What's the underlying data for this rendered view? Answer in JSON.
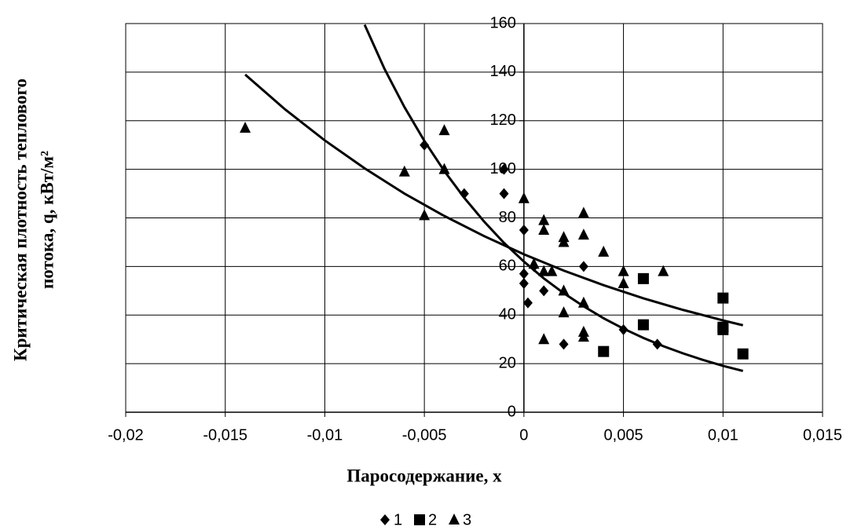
{
  "chart_data": {
    "type": "scatter",
    "xlabel": "Паросодержание, x",
    "ylabel": [
      "Критическая плотность теплового",
      "потока, q, кВт/м²"
    ],
    "xlim": [
      -0.02,
      0.015
    ],
    "ylim": [
      0,
      160
    ],
    "xticks": [
      {
        "value": -0.02,
        "label": "-0,02"
      },
      {
        "value": -0.015,
        "label": "-0,015"
      },
      {
        "value": -0.01,
        "label": "-0,01"
      },
      {
        "value": -0.005,
        "label": "-0,005"
      },
      0,
      {
        "value": 0.005,
        "label": "0,005"
      },
      {
        "value": 0.01,
        "label": "0,01"
      },
      {
        "value": 0.015,
        "label": "0,015"
      }
    ],
    "yticks": [
      0,
      20,
      40,
      60,
      80,
      100,
      120,
      140,
      160
    ],
    "grid": true,
    "legend": "bottom",
    "series": [
      {
        "name": "1",
        "color": "#000000",
        "marker": "diamond",
        "x": [
          -0.005,
          -0.001,
          -0.001,
          -0.003,
          0,
          0,
          0,
          0.0002,
          0.001,
          0.002,
          0.003,
          0.005,
          0.0067,
          0.0005
        ],
        "values": [
          110,
          100,
          90,
          90,
          75,
          57,
          53,
          45,
          50,
          28,
          60,
          34,
          28,
          60
        ]
      },
      {
        "name": "2",
        "color": "#000000",
        "marker": "square",
        "x": [
          0.004,
          0.006,
          0.006,
          0.01,
          0.01,
          0.01,
          0.011
        ],
        "values": [
          25,
          55,
          36,
          47,
          35,
          34,
          24
        ]
      },
      {
        "name": "3",
        "color": "#000000",
        "marker": "triangle",
        "x": [
          -0.014,
          -0.006,
          -0.005,
          -0.004,
          -0.004,
          0,
          0.0005,
          0.001,
          0.001,
          0.001,
          0.0014,
          0.001,
          0.002,
          0.002,
          0.002,
          0.002,
          0.003,
          0.003,
          0.003,
          0.003,
          0.003,
          0.004,
          0.005,
          0.005,
          0.007
        ],
        "values": [
          117,
          99,
          81,
          116,
          100,
          88,
          61,
          79,
          75,
          58,
          58,
          30,
          72,
          70,
          50,
          41,
          82,
          73,
          45,
          33,
          31,
          66,
          58,
          53,
          58
        ]
      }
    ],
    "trendlines": [
      {
        "color": "#000000",
        "x": [
          -0.008,
          -0.007,
          -0.006,
          -0.005,
          -0.004,
          -0.003,
          -0.002,
          -0.001,
          0,
          0.001,
          0.002,
          0.003,
          0.004,
          0.005,
          0.006,
          0.007,
          0.008,
          0.009,
          0.01,
          0.011
        ],
        "values": [
          159.5,
          141.3,
          125.6,
          111.7,
          99.3,
          88.3,
          78.5,
          69.7,
          62,
          55.1,
          49,
          43.6,
          38.7,
          34.4,
          30.6,
          27.2,
          24.2,
          21.5,
          19.1,
          17
        ]
      },
      {
        "color": "#000000",
        "x": [
          -0.014,
          -0.012,
          -0.01,
          -0.008,
          -0.006,
          -0.004,
          -0.002,
          0,
          0.002,
          0.004,
          0.006,
          0.008,
          0.01,
          0.011
        ],
        "values": [
          139,
          124.7,
          111.9,
          100.4,
          90,
          80.8,
          72.5,
          65,
          58.3,
          52.3,
          46.9,
          42.1,
          37.8,
          35.8
        ]
      }
    ]
  }
}
